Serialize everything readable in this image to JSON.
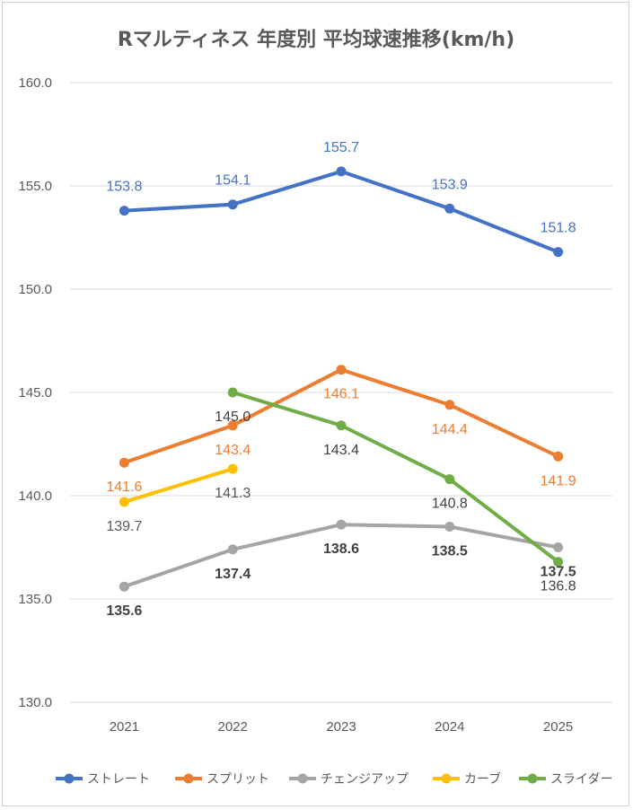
{
  "chart_data": {
    "type": "line",
    "title": "Rマルティネス 年度別 平均球速推移(km/h)",
    "xlabel": "",
    "ylabel": "",
    "categories": [
      "2021",
      "2022",
      "2023",
      "2024",
      "2025"
    ],
    "ylim": [
      130.0,
      160.0
    ],
    "yticks": [
      "130.0",
      "135.0",
      "140.0",
      "145.0",
      "150.0",
      "155.0",
      "160.0"
    ],
    "grid": true,
    "legend_position": "bottom",
    "series": [
      {
        "name": "ストレート",
        "color": "#4472C4",
        "label_color": "#4472C4",
        "label_bold": false,
        "label_pos": "above",
        "values": [
          153.8,
          154.1,
          155.7,
          153.9,
          151.8
        ],
        "labels": [
          "153.8",
          "154.1",
          "155.7",
          "153.9",
          "151.8"
        ]
      },
      {
        "name": "スプリット",
        "color": "#ED7D31",
        "label_color": "#ED7D31",
        "label_bold": false,
        "label_pos": "below",
        "values": [
          141.6,
          143.4,
          146.1,
          144.4,
          141.9
        ],
        "labels": [
          "141.6",
          "143.4",
          "146.1",
          "144.4",
          "141.9"
        ]
      },
      {
        "name": "チェンジアップ",
        "color": "#A5A5A5",
        "label_color": "#404040",
        "label_bold": true,
        "label_pos": "below",
        "values": [
          135.6,
          137.4,
          138.6,
          138.5,
          137.5
        ],
        "labels": [
          "135.6",
          "137.4",
          "138.6",
          "138.5",
          "137.5"
        ]
      },
      {
        "name": "カーブ",
        "color": "#FFC000",
        "label_color": "#595959",
        "label_bold": false,
        "label_pos": "below",
        "values": [
          139.7,
          141.3,
          null,
          null,
          null
        ],
        "labels": [
          "139.7",
          "141.3",
          "",
          "",
          ""
        ]
      },
      {
        "name": "スライダー",
        "color": "#70AD47",
        "label_color": "#404040",
        "label_bold": false,
        "label_pos": "below",
        "values": [
          null,
          145.0,
          143.4,
          140.8,
          136.8
        ],
        "labels": [
          "",
          "145.0",
          "143.4",
          "140.8",
          "136.8"
        ]
      }
    ]
  }
}
